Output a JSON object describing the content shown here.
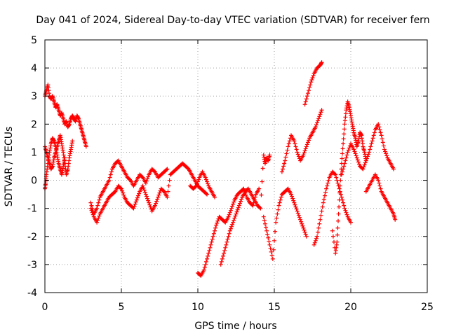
{
  "chart_data": {
    "type": "scatter",
    "title": "Day 041 of 2024, Sidereal Day-to-day VTEC variation (SDTVAR) for receiver fern",
    "xlabel": "GPS time / hours",
    "ylabel": "SDTVAR / TECUs",
    "xlim": [
      0,
      25
    ],
    "ylim": [
      -4,
      5
    ],
    "xticks": [
      0,
      5,
      10,
      15,
      20,
      25
    ],
    "yticks": [
      -4,
      -3,
      -2,
      -1,
      0,
      1,
      2,
      3,
      4,
      5
    ],
    "grid": true,
    "marker": "+",
    "color": "#ff0000",
    "series": [
      {
        "name": "SDTVAR",
        "x": [
          0.0,
          0.1,
          0.2,
          0.3,
          0.4,
          0.5,
          0.6,
          0.7,
          0.8,
          0.9,
          1.0,
          1.1,
          1.2,
          1.3,
          1.4,
          1.5,
          1.6,
          1.7,
          1.8,
          1.9,
          2.0,
          2.1,
          2.2,
          2.3,
          2.4,
          2.5,
          2.6,
          2.7,
          0.0,
          0.1,
          0.2,
          0.3,
          0.4,
          0.5,
          0.6,
          0.7,
          0.8,
          0.9,
          1.0,
          1.1,
          1.2,
          1.3,
          1.4,
          1.5,
          1.6,
          1.7,
          1.8,
          0.0,
          0.05,
          0.1,
          0.2,
          0.3,
          0.4,
          0.5,
          0.6,
          0.7,
          0.8,
          0.9,
          1.0,
          1.1,
          1.2,
          1.3,
          3.0,
          3.2,
          3.4,
          3.6,
          3.8,
          4.0,
          4.2,
          4.4,
          4.6,
          4.8,
          5.0,
          5.2,
          5.4,
          5.6,
          5.8,
          6.0,
          6.2,
          6.4,
          6.6,
          6.8,
          7.0,
          7.2,
          7.4,
          7.6,
          7.8,
          8.0,
          3.0,
          3.2,
          3.4,
          3.6,
          3.8,
          4.0,
          4.2,
          4.4,
          4.6,
          4.8,
          5.0,
          5.2,
          5.4,
          5.6,
          5.8,
          6.0,
          6.2,
          6.4,
          6.6,
          6.8,
          7.0,
          7.2,
          7.4,
          7.6,
          7.8,
          8.0,
          8.2,
          8.4,
          8.6,
          8.8,
          9.0,
          9.2,
          9.4,
          9.6,
          9.8,
          10.0,
          10.2,
          10.4,
          10.6,
          9.5,
          9.7,
          9.9,
          10.1,
          10.3,
          10.5,
          10.7,
          10.9,
          11.1,
          10.0,
          10.2,
          10.4,
          10.6,
          10.8,
          11.0,
          11.2,
          11.4,
          11.6,
          11.8,
          12.0,
          12.2,
          12.4,
          12.6,
          12.8,
          13.0,
          13.2,
          13.4,
          13.6,
          13.8,
          14.0,
          11.5,
          11.7,
          11.9,
          12.1,
          12.3,
          12.5,
          12.7,
          12.9,
          13.1,
          13.3,
          13.5,
          13.7,
          13.9,
          14.1,
          14.3,
          14.4,
          14.5,
          14.6,
          14.7,
          14.3,
          14.5,
          14.7,
          14.9,
          15.1,
          15.3,
          15.5,
          15.7,
          15.9,
          16.1,
          16.3,
          16.5,
          16.7,
          16.9,
          17.1,
          15.5,
          15.7,
          15.9,
          16.1,
          16.3,
          16.5,
          16.7,
          16.9,
          17.1,
          17.3,
          17.5,
          17.7,
          17.9,
          18.1,
          17.0,
          17.2,
          17.4,
          17.6,
          17.8,
          18.0,
          18.1,
          17.6,
          17.8,
          18.0,
          18.2,
          18.4,
          18.6,
          18.8,
          19.0,
          19.2,
          19.4,
          19.6,
          19.8,
          20.0,
          18.8,
          19.0,
          19.1,
          19.2,
          19.3,
          19.4,
          19.5,
          19.6,
          19.7,
          19.8,
          19.9,
          20.0,
          20.1,
          20.2,
          20.3,
          20.4,
          20.5,
          20.6,
          20.7,
          20.8,
          20.9,
          21.0,
          19.4,
          19.6,
          19.8,
          20.0,
          20.2,
          20.4,
          20.6,
          20.8,
          21.0,
          21.2,
          21.4,
          21.6,
          21.8,
          22.0,
          22.2,
          22.4,
          22.6,
          22.8,
          21.0,
          21.2,
          21.4,
          21.6,
          21.8,
          22.0,
          22.2,
          22.4,
          22.6,
          22.8,
          22.9
        ],
        "y": [
          3.0,
          3.2,
          3.4,
          3.0,
          2.9,
          3.0,
          2.8,
          2.6,
          2.7,
          2.5,
          2.3,
          2.4,
          2.2,
          2.0,
          2.1,
          1.9,
          2.0,
          2.2,
          2.3,
          2.2,
          2.1,
          2.3,
          2.2,
          2.0,
          1.8,
          1.6,
          1.4,
          1.2,
          1.2,
          1.0,
          0.8,
          0.6,
          0.4,
          0.5,
          0.8,
          1.0,
          1.2,
          1.4,
          1.6,
          1.3,
          1.0,
          0.6,
          0.2,
          0.4,
          0.8,
          1.1,
          1.4,
          -0.3,
          -0.1,
          0.2,
          0.6,
          1.0,
          1.3,
          1.5,
          1.4,
          1.2,
          0.9,
          0.6,
          0.4,
          0.2,
          0.5,
          0.8,
          -0.8,
          -1.2,
          -1.0,
          -0.6,
          -0.4,
          -0.2,
          0.0,
          0.4,
          0.6,
          0.7,
          0.5,
          0.3,
          0.1,
          0.0,
          -0.2,
          0.0,
          0.2,
          0.1,
          -0.1,
          0.2,
          0.4,
          0.3,
          0.1,
          0.2,
          0.3,
          0.4,
          -1.0,
          -1.3,
          -1.5,
          -1.2,
          -1.0,
          -0.8,
          -0.6,
          -0.5,
          -0.4,
          -0.2,
          -0.3,
          -0.6,
          -0.8,
          -0.9,
          -1.0,
          -0.7,
          -0.4,
          -0.2,
          -0.5,
          -0.8,
          -1.1,
          -0.9,
          -0.6,
          -0.3,
          -0.4,
          -0.6,
          0.2,
          0.3,
          0.4,
          0.5,
          0.6,
          0.5,
          0.4,
          0.2,
          0.0,
          -0.2,
          -0.3,
          -0.4,
          -0.5,
          -0.2,
          -0.3,
          -0.2,
          0.1,
          0.3,
          0.1,
          -0.2,
          -0.4,
          -0.6,
          -3.3,
          -3.4,
          -3.2,
          -2.8,
          -2.4,
          -2.0,
          -1.6,
          -1.3,
          -1.4,
          -1.5,
          -1.3,
          -1.0,
          -0.7,
          -0.5,
          -0.4,
          -0.3,
          -0.6,
          -0.8,
          -0.9,
          -0.5,
          -0.3,
          -3.0,
          -2.6,
          -2.2,
          -1.8,
          -1.5,
          -1.2,
          -0.9,
          -0.6,
          -0.4,
          -0.3,
          -0.5,
          -0.7,
          -0.9,
          -1.0,
          0.9,
          0.6,
          0.8,
          0.7,
          0.9,
          -1.3,
          -1.8,
          -2.3,
          -2.8,
          -1.5,
          -0.9,
          -0.5,
          -0.4,
          -0.3,
          -0.5,
          -0.8,
          -1.1,
          -1.4,
          -1.7,
          -2.0,
          0.3,
          0.7,
          1.2,
          1.6,
          1.4,
          1.0,
          0.7,
          0.9,
          1.2,
          1.5,
          1.7,
          1.9,
          2.2,
          2.5,
          2.7,
          3.1,
          3.5,
          3.8,
          4.0,
          4.1,
          4.2,
          -2.3,
          -2.0,
          -1.4,
          -0.8,
          -0.3,
          0.1,
          0.3,
          0.2,
          -0.2,
          -0.6,
          -1.0,
          -1.3,
          -1.5,
          -1.8,
          -2.6,
          -2.2,
          -1.2,
          -0.2,
          0.6,
          1.3,
          2.0,
          2.5,
          2.8,
          2.6,
          2.3,
          2.0,
          1.7,
          1.5,
          1.2,
          1.4,
          1.7,
          1.6,
          1.2,
          1.0,
          0.7,
          0.2,
          0.6,
          1.0,
          1.3,
          1.1,
          0.8,
          0.5,
          0.4,
          0.7,
          1.0,
          1.4,
          1.8,
          2.0,
          1.6,
          1.1,
          0.8,
          0.6,
          0.4,
          -0.4,
          -0.2,
          0.0,
          0.2,
          0.0,
          -0.4,
          -0.6,
          -0.8,
          -1.0,
          -1.2,
          -1.4
        ]
      }
    ]
  }
}
